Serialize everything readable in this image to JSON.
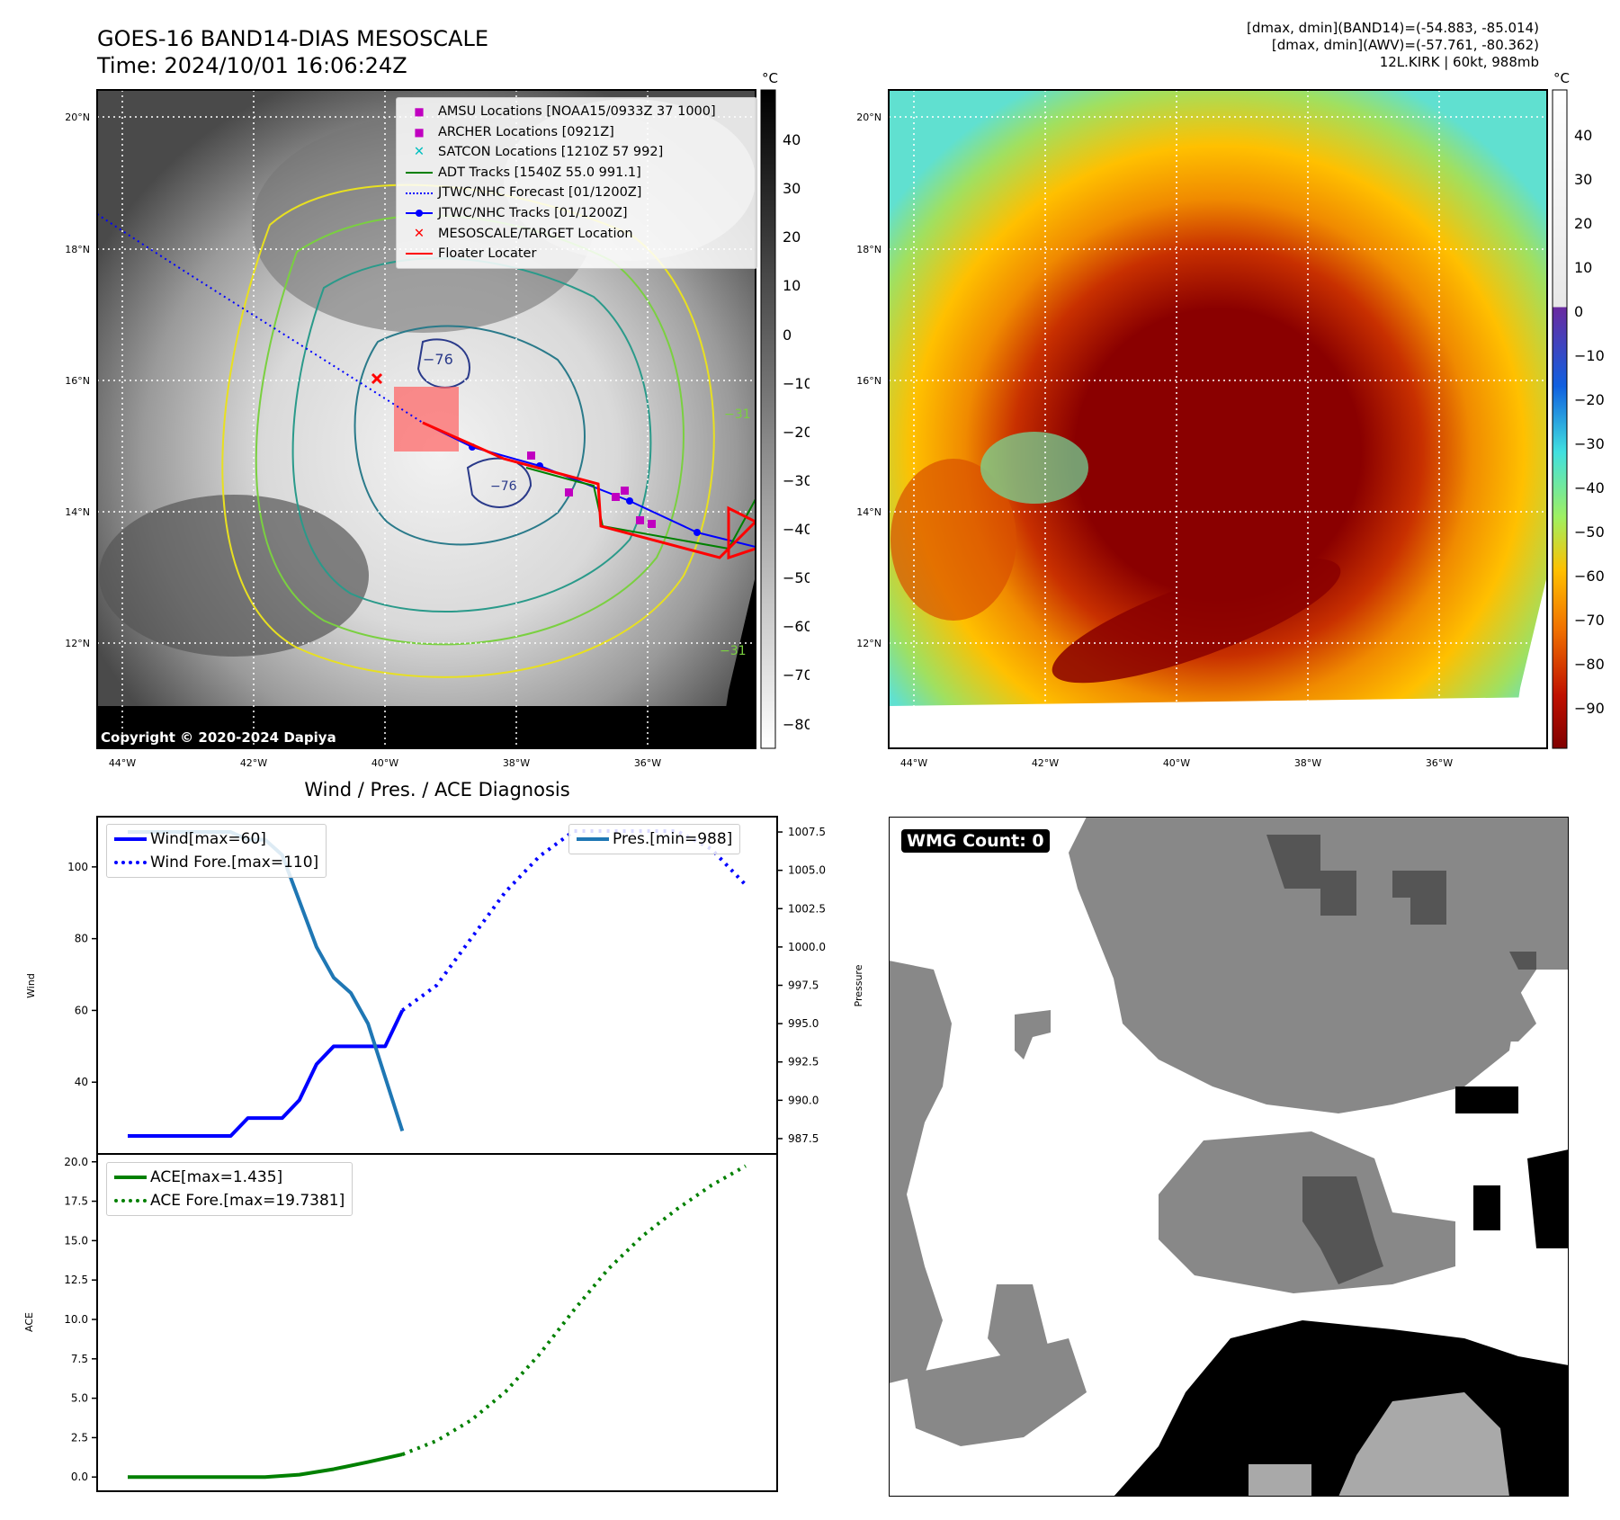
{
  "header": {
    "title_line1": "GOES-16 BAND14-DIAS MESOSCALE",
    "title_line2": "Time: 2024/10/01 16:06:24Z",
    "info_line1": "[dmax, dmin](BAND14)=(-54.883, -85.014)",
    "info_line2": "[dmax, dmin](AWV)=(-57.761, -80.362)",
    "info_line3": "12L.KIRK | 60kt, 988mb"
  },
  "map_axes": {
    "lat_labels": [
      "20°N",
      "18°N",
      "16°N",
      "14°N",
      "12°N"
    ],
    "lon_labels": [
      "44°W",
      "42°W",
      "40°W",
      "38°W",
      "36°W"
    ]
  },
  "colorbar_left": {
    "unit": "°C",
    "ticks": [
      "40",
      "30",
      "20",
      "10",
      "0",
      "−10",
      "−20",
      "−30",
      "−40",
      "−50",
      "−60",
      "−70",
      "−80"
    ]
  },
  "colorbar_right": {
    "unit": "°C",
    "ticks": [
      "40",
      "30",
      "20",
      "10",
      "0",
      "−10",
      "−20",
      "−30",
      "−40",
      "−50",
      "−60",
      "−70",
      "−80",
      "−90"
    ]
  },
  "map_legend": [
    {
      "label": "AMSU Locations [NOAA15/0933Z 37 1000]",
      "kind": "square",
      "color": "#c000c0"
    },
    {
      "label": "ARCHER Locations [0921Z]",
      "kind": "square",
      "color": "#c000c0"
    },
    {
      "label": "SATCON Locations [1210Z 57 992]",
      "kind": "x",
      "color": "#00bfbf"
    },
    {
      "label": "ADT Tracks [1540Z 55.0 991.1]",
      "kind": "line",
      "color": "#008000"
    },
    {
      "label": "JTWC/NHC Forecast [01/1200Z]",
      "kind": "dotted",
      "color": "#0000ff"
    },
    {
      "label": "JTWC/NHC Tracks [01/1200Z]",
      "kind": "line-dot",
      "color": "#0000ff"
    },
    {
      "label": "MESOSCALE/TARGET Location",
      "kind": "x",
      "color": "#ff0000"
    },
    {
      "label": "Floater Locater",
      "kind": "line",
      "color": "#ff0000"
    }
  ],
  "contour_labels": [
    "−76",
    "−76",
    "−31",
    "−31"
  ],
  "copyright": "Copyright © 2020-2024 Dapiya",
  "diagnosis": {
    "title": "Wind / Pres. / ACE Diagnosis",
    "wind_ylabel": "Wind",
    "pres_ylabel": "Pressure",
    "ace_ylabel": "ACE",
    "legend_wind": "Wind[max=60]",
    "legend_wind_fore": "Wind Fore.[max=110]",
    "legend_pres": "Pres.[min=988]",
    "legend_ace": "ACE[max=1.435]",
    "legend_ace_fore": "ACE Fore.[max=19.7381]"
  },
  "wmg": {
    "label": "WMG Count: 0"
  },
  "chart_data": [
    {
      "type": "line",
      "title": "Wind / Pres. / ACE Diagnosis",
      "ylabel": "Wind",
      "ylim": [
        20,
        114
      ],
      "yticks": [
        40,
        60,
        80,
        100
      ],
      "series": [
        {
          "name": "Wind[max=60]",
          "color": "#0000ff",
          "style": "solid",
          "x": [
            0,
            1,
            2,
            3,
            4,
            5,
            6,
            7,
            8,
            9,
            10,
            11,
            12,
            13,
            14,
            15,
            16
          ],
          "values": [
            25,
            25,
            25,
            25,
            25,
            25,
            25,
            30,
            30,
            30,
            35,
            45,
            50,
            50,
            50,
            50,
            60
          ]
        },
        {
          "name": "Wind Fore.[max=110]",
          "color": "#0000ff",
          "style": "dotted",
          "x": [
            16,
            18,
            20,
            22,
            24,
            26,
            28,
            30,
            32,
            34,
            36
          ],
          "values": [
            60,
            67,
            80,
            93,
            103,
            110,
            110,
            110,
            110,
            105,
            95
          ]
        }
      ]
    },
    {
      "type": "line",
      "ylabel": "Pressure",
      "ylim": [
        986.5,
        1008.5
      ],
      "yticks": [
        987.5,
        990.0,
        992.5,
        995.0,
        997.5,
        1000.0,
        1002.5,
        1005.0,
        1007.5
      ],
      "series": [
        {
          "name": "Pres.[min=988]",
          "color": "#1f77b4",
          "style": "solid",
          "x": [
            0,
            1,
            2,
            3,
            4,
            5,
            6,
            7,
            8,
            9,
            10,
            11,
            12,
            13,
            14,
            15,
            16
          ],
          "values": [
            1007.5,
            1007.5,
            1007.5,
            1007.5,
            1007.5,
            1007.5,
            1007.5,
            1007,
            1007,
            1006,
            1003,
            1000,
            998,
            997,
            995,
            991.5,
            988
          ]
        }
      ]
    },
    {
      "type": "line",
      "ylabel": "ACE",
      "ylim": [
        -0.9,
        20.5
      ],
      "yticks": [
        0.0,
        2.5,
        5.0,
        7.5,
        10.0,
        12.5,
        15.0,
        17.5,
        20.0
      ],
      "series": [
        {
          "name": "ACE[max=1.435]",
          "color": "#008000",
          "style": "solid",
          "x": [
            0,
            2,
            4,
            6,
            8,
            10,
            12,
            14,
            16
          ],
          "values": [
            0,
            0,
            0,
            0,
            0,
            0.15,
            0.5,
            0.95,
            1.435
          ]
        },
        {
          "name": "ACE Fore.[max=19.7381]",
          "color": "#008000",
          "style": "dotted",
          "x": [
            16,
            18,
            20,
            22,
            24,
            26,
            28,
            30,
            32,
            34,
            36
          ],
          "values": [
            1.435,
            2.3,
            3.6,
            5.4,
            7.8,
            10.6,
            13.2,
            15.3,
            17.0,
            18.5,
            19.7381
          ]
        }
      ]
    }
  ]
}
